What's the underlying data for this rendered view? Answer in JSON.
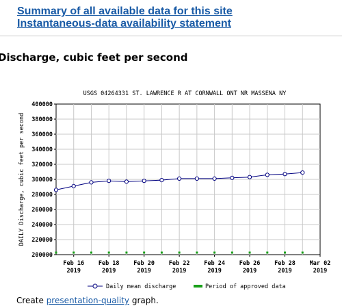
{
  "links": {
    "summary": "Summary of all available data for this site",
    "availability": "Instantaneous-data availability statement"
  },
  "section_title": "Discharge, cubic feet per second",
  "footer": {
    "prefix": "Create ",
    "link": "presentation-quality",
    "suffix": " graph."
  },
  "chart_data": {
    "type": "line",
    "title": "USGS 04264331 ST. LAWRENCE R AT CORNWALL ONT NR MASSENA NY",
    "ylabel": "DAILY Discharge, cubic feet per second",
    "xlabel": "",
    "ylim": [
      200000,
      400000
    ],
    "yticks": [
      200000,
      220000,
      240000,
      260000,
      280000,
      300000,
      320000,
      340000,
      360000,
      380000,
      400000
    ],
    "xlim": [
      "2019-02-15",
      "2019-03-02"
    ],
    "xticks": [
      {
        "date": "2019-02-16",
        "line1": "Feb 16",
        "line2": "2019"
      },
      {
        "date": "2019-02-18",
        "line1": "Feb 18",
        "line2": "2019"
      },
      {
        "date": "2019-02-20",
        "line1": "Feb 20",
        "line2": "2019"
      },
      {
        "date": "2019-02-22",
        "line1": "Feb 22",
        "line2": "2019"
      },
      {
        "date": "2019-02-24",
        "line1": "Feb 24",
        "line2": "2019"
      },
      {
        "date": "2019-02-26",
        "line1": "Feb 26",
        "line2": "2019"
      },
      {
        "date": "2019-02-28",
        "line1": "Feb 28",
        "line2": "2019"
      },
      {
        "date": "2019-03-02",
        "line1": "Mar 02",
        "line2": "2019"
      }
    ],
    "grid": true,
    "series": [
      {
        "name": "Daily mean discharge",
        "color": "#000080",
        "x": [
          "2019-02-15",
          "2019-02-16",
          "2019-02-17",
          "2019-02-18",
          "2019-02-19",
          "2019-02-20",
          "2019-02-21",
          "2019-02-22",
          "2019-02-23",
          "2019-02-24",
          "2019-02-25",
          "2019-02-26",
          "2019-02-27",
          "2019-02-28",
          "2019-03-01"
        ],
        "y": [
          286000,
          291000,
          296000,
          298000,
          297000,
          298000,
          299000,
          301000,
          301000,
          301000,
          302000,
          303000,
          306000,
          307000,
          309000
        ]
      }
    ],
    "approved_marker": {
      "name": "Period of approved data",
      "color": "#1aa01a",
      "x": [
        "2019-02-15",
        "2019-02-16",
        "2019-02-17",
        "2019-02-18",
        "2019-02-19",
        "2019-02-20",
        "2019-02-21",
        "2019-02-22",
        "2019-02-23",
        "2019-02-24",
        "2019-02-25",
        "2019-02-26",
        "2019-02-27",
        "2019-02-28",
        "2019-03-01"
      ]
    },
    "legend": "bottom"
  }
}
